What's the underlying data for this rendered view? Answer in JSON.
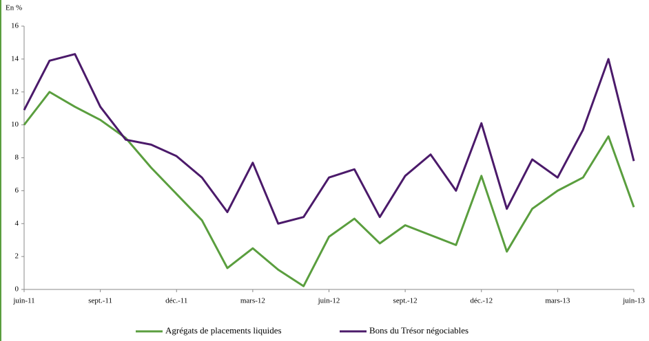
{
  "chart_data": {
    "type": "line",
    "y_axis_label": "En %",
    "categories": [
      "juin-11",
      null,
      null,
      "sept.-11",
      null,
      null,
      "déc.-11",
      null,
      null,
      "mars-12",
      null,
      null,
      "juin-12",
      null,
      null,
      "sept.-12",
      null,
      null,
      "déc.-12",
      null,
      null,
      "mars-13",
      null,
      null,
      "juin-13"
    ],
    "series": [
      {
        "name": "Agrégats de placements liquides",
        "color": "#5a9e3e",
        "values": [
          10.0,
          12.0,
          11.1,
          10.3,
          9.2,
          7.4,
          5.8,
          4.2,
          1.3,
          2.5,
          1.2,
          0.2,
          3.2,
          4.3,
          2.8,
          3.9,
          3.3,
          2.7,
          6.9,
          2.3,
          4.9,
          6.0,
          6.8,
          9.3,
          5.0
        ]
      },
      {
        "name": "Bons du Trésor négociables",
        "color": "#4b1a6a",
        "values": [
          10.9,
          13.9,
          14.3,
          11.1,
          9.1,
          8.8,
          8.1,
          6.8,
          4.7,
          7.7,
          4.0,
          4.4,
          6.8,
          7.3,
          4.4,
          6.9,
          8.2,
          6.0,
          10.1,
          4.9,
          7.9,
          6.8,
          9.7,
          14.0,
          7.8
        ]
      }
    ],
    "ylim": [
      0,
      16
    ],
    "yticks": [
      0,
      2,
      4,
      6,
      8,
      10,
      12,
      14,
      16
    ],
    "legend": "bottom"
  }
}
